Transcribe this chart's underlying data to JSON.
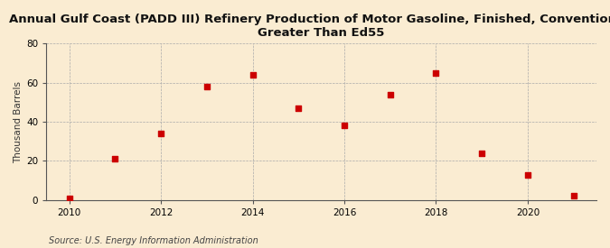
{
  "title_line1": "Annual Gulf Coast (PADD III) Refinery Production of Motor Gasoline, Finished, Conventional,",
  "title_line2": "Greater Than Ed55",
  "ylabel": "Thousand Barrels",
  "source": "Source: U.S. Energy Information Administration",
  "background_color": "#faecd2",
  "years": [
    2010,
    2011,
    2012,
    2013,
    2014,
    2015,
    2016,
    2017,
    2018,
    2019,
    2020,
    2021
  ],
  "values": [
    1,
    21,
    34,
    58,
    64,
    47,
    38,
    54,
    65,
    24,
    13,
    2
  ],
  "marker_color": "#cc0000",
  "marker_size": 22,
  "xlim": [
    2009.5,
    2021.5
  ],
  "ylim": [
    0,
    80
  ],
  "yticks": [
    0,
    20,
    40,
    60,
    80
  ],
  "xticks": [
    2010,
    2012,
    2014,
    2016,
    2018,
    2020
  ],
  "title_fontsize": 9.5,
  "label_fontsize": 7.5,
  "tick_fontsize": 7.5,
  "source_fontsize": 7.0
}
